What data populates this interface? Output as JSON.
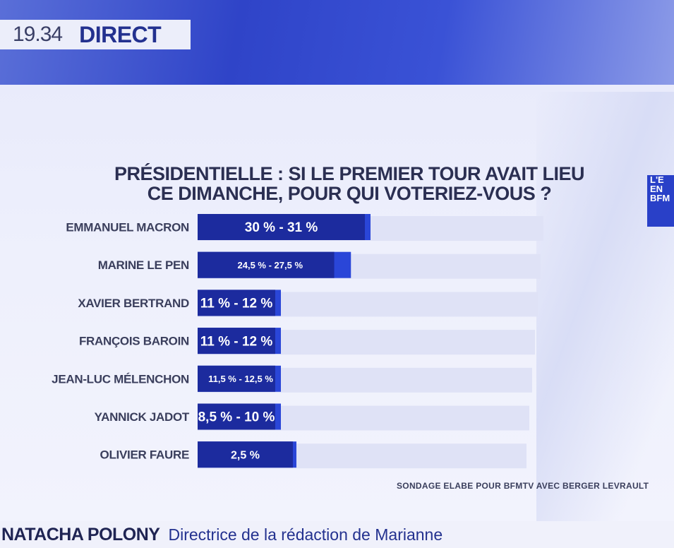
{
  "header": {
    "time": "19.34",
    "live_label": "DIRECT"
  },
  "logo": {
    "text": "L'E EN BFM"
  },
  "chart_data": {
    "type": "bar",
    "orientation": "horizontal",
    "title": [
      "PRÉSIDENTIELLE : SI LE PREMIER TOUR AVAIT LIEU",
      "CE DIMANCHE, POUR QUI VOTERIEZ-VOUS ?"
    ],
    "categories": [
      "EMMANUEL MACRON",
      "MARINE LE PEN",
      "XAVIER BERTRAND",
      "FRANÇOIS BAROIN",
      "JEAN-LUC MÉLENCHON",
      "YANNICK JADOT",
      "OLIVIER FAURE"
    ],
    "ranges": [
      [
        30,
        31
      ],
      [
        24.5,
        27.5
      ],
      [
        11,
        12
      ],
      [
        11,
        12
      ],
      [
        11.5,
        12.5
      ],
      [
        8.5,
        10
      ],
      [
        2.5,
        2.5
      ]
    ],
    "value_labels": [
      "30 % - 31 %",
      "24,5 % - 27,5 %",
      "11 % - 12 %",
      "11 % - 12 %",
      "11,5 % - 12,5 %",
      "8,5 % - 10 %",
      "2,5 %"
    ],
    "colors": {
      "bar_dark": "#1c2b9e",
      "bar_light": "#2a46d8",
      "track": "#dfe2f6"
    }
  },
  "source": "SONDAGE ELABE POUR BFMTV AVEC BERGER LEVRAULT",
  "lower_third": {
    "name": "NATACHA POLONY",
    "role": "Directrice de la rédaction de Marianne"
  }
}
